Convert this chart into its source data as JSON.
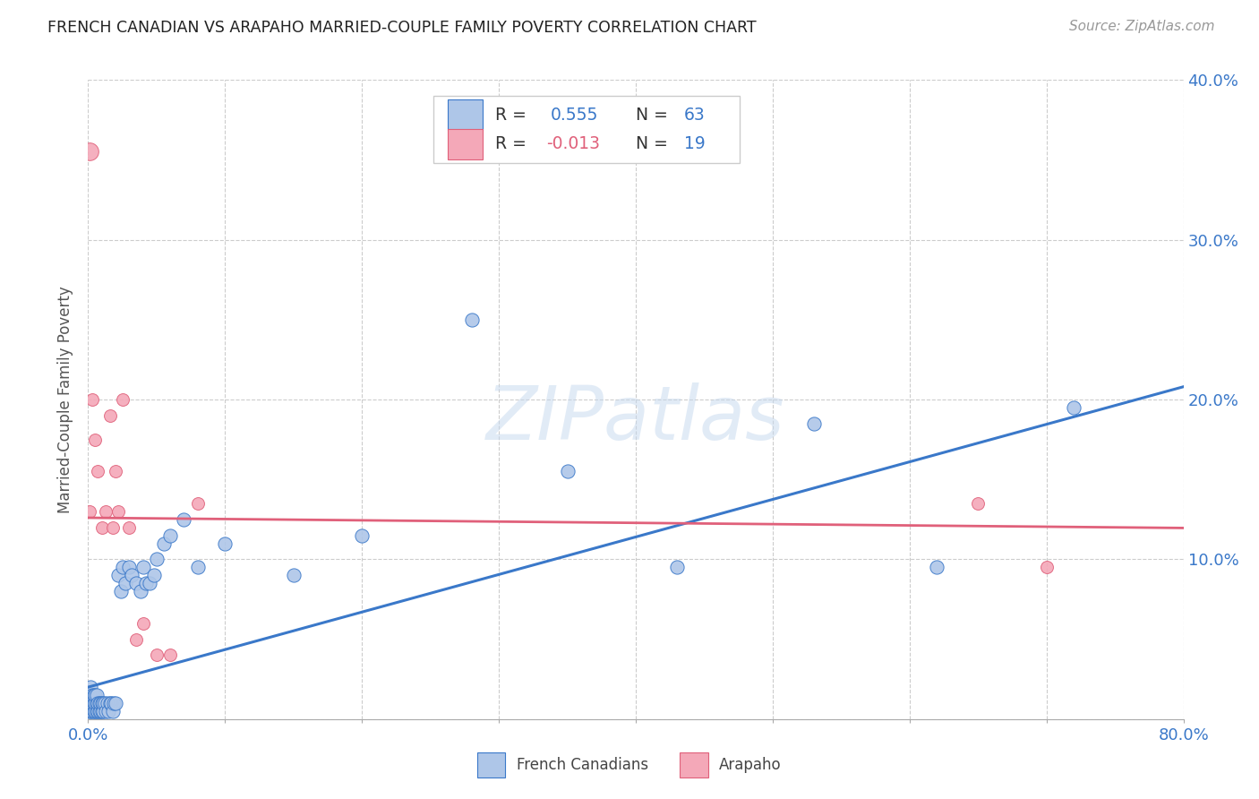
{
  "title": "FRENCH CANADIAN VS ARAPAHO MARRIED-COUPLE FAMILY POVERTY CORRELATION CHART",
  "source": "Source: ZipAtlas.com",
  "ylabel": "Married-Couple Family Poverty",
  "watermark": "ZIPatlas",
  "xlim": [
    0,
    0.8
  ],
  "ylim": [
    0,
    0.4
  ],
  "xticks": [
    0.0,
    0.1,
    0.2,
    0.3,
    0.4,
    0.5,
    0.6,
    0.7,
    0.8
  ],
  "yticks": [
    0.0,
    0.1,
    0.2,
    0.3,
    0.4
  ],
  "french_R": 0.555,
  "french_N": 63,
  "arapaho_R": -0.013,
  "arapaho_N": 19,
  "french_color": "#aec6e8",
  "arapaho_color": "#f4a8b8",
  "french_line_color": "#3a78c9",
  "arapaho_line_color": "#e0607a",
  "background_color": "#ffffff",
  "grid_color": "#cccccc",
  "french_x": [
    0.001,
    0.001,
    0.001,
    0.002,
    0.002,
    0.002,
    0.003,
    0.003,
    0.003,
    0.004,
    0.004,
    0.004,
    0.005,
    0.005,
    0.005,
    0.006,
    0.006,
    0.006,
    0.007,
    0.007,
    0.008,
    0.008,
    0.009,
    0.009,
    0.01,
    0.01,
    0.011,
    0.011,
    0.012,
    0.013,
    0.014,
    0.015,
    0.016,
    0.017,
    0.018,
    0.019,
    0.02,
    0.022,
    0.024,
    0.025,
    0.027,
    0.03,
    0.032,
    0.035,
    0.038,
    0.04,
    0.042,
    0.045,
    0.048,
    0.05,
    0.055,
    0.06,
    0.07,
    0.08,
    0.1,
    0.15,
    0.2,
    0.28,
    0.35,
    0.43,
    0.53,
    0.62,
    0.72
  ],
  "french_y": [
    0.005,
    0.01,
    0.015,
    0.005,
    0.01,
    0.02,
    0.005,
    0.01,
    0.015,
    0.005,
    0.01,
    0.015,
    0.005,
    0.01,
    0.015,
    0.005,
    0.01,
    0.015,
    0.005,
    0.01,
    0.005,
    0.01,
    0.005,
    0.01,
    0.005,
    0.01,
    0.005,
    0.01,
    0.01,
    0.005,
    0.01,
    0.005,
    0.01,
    0.01,
    0.005,
    0.01,
    0.01,
    0.09,
    0.08,
    0.095,
    0.085,
    0.095,
    0.09,
    0.085,
    0.08,
    0.095,
    0.085,
    0.085,
    0.09,
    0.1,
    0.11,
    0.115,
    0.125,
    0.095,
    0.11,
    0.09,
    0.115,
    0.25,
    0.155,
    0.095,
    0.185,
    0.095,
    0.195
  ],
  "arapaho_x": [
    0.001,
    0.003,
    0.005,
    0.007,
    0.01,
    0.013,
    0.016,
    0.018,
    0.02,
    0.022,
    0.025,
    0.03,
    0.035,
    0.04,
    0.05,
    0.06,
    0.08,
    0.65,
    0.7
  ],
  "arapaho_y": [
    0.13,
    0.2,
    0.175,
    0.155,
    0.12,
    0.13,
    0.19,
    0.12,
    0.155,
    0.13,
    0.2,
    0.12,
    0.05,
    0.06,
    0.04,
    0.04,
    0.135,
    0.135,
    0.095
  ],
  "arapaho_large_x": [
    0.001
  ],
  "arapaho_large_y": [
    0.355
  ],
  "french_scatter_size": 120,
  "arapaho_scatter_size": 100,
  "arapaho_large_size": 200
}
